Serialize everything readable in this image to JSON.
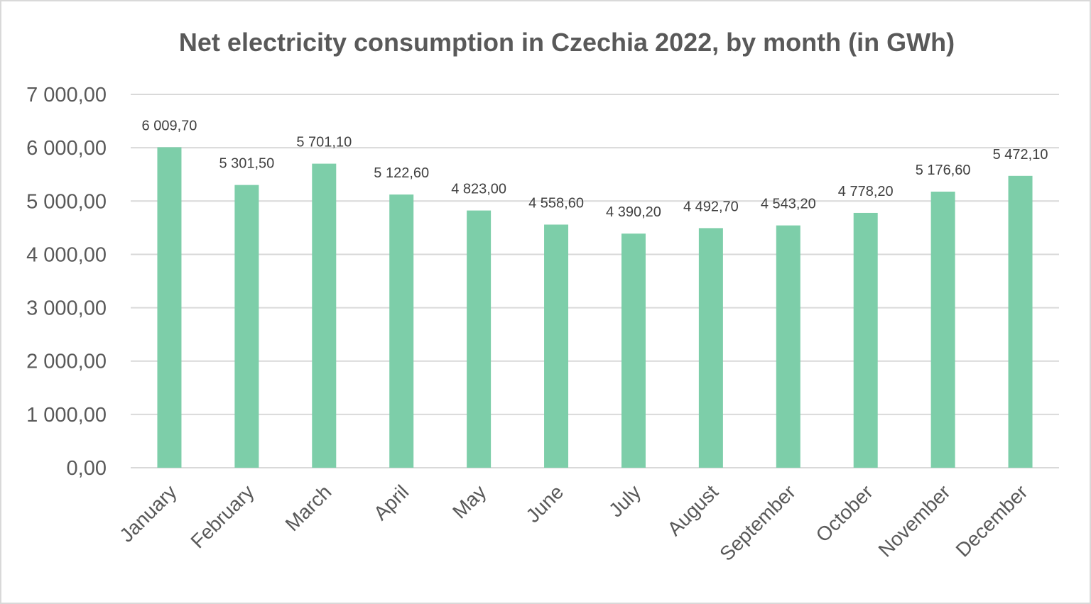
{
  "chart_data": {
    "type": "bar",
    "title": "Net electricity consumption in Czechia 2022, by month (in GWh)",
    "categories": [
      "January",
      "February",
      "March",
      "April",
      "May",
      "June",
      "July",
      "August",
      "September",
      "October",
      "November",
      "December"
    ],
    "values": [
      6009.7,
      5301.5,
      5701.1,
      5122.6,
      4823.0,
      4558.6,
      4390.2,
      4492.7,
      4543.2,
      4778.2,
      5176.6,
      5472.1
    ],
    "data_labels": [
      "6 009,70",
      "5 301,50",
      "5 701,10",
      "5 122,60",
      "4 823,00",
      "4 558,60",
      "4 390,20",
      "4 492,70",
      "4 543,20",
      "4 778,20",
      "5 176,60",
      "5 472,10"
    ],
    "ylim": [
      0,
      7000
    ],
    "yticks": [
      0,
      1000,
      2000,
      3000,
      4000,
      5000,
      6000,
      7000
    ],
    "ytick_labels": [
      "0,00",
      "1 000,00",
      "2 000,00",
      "3 000,00",
      "4 000,00",
      "5 000,00",
      "6 000,00",
      "7 000,00"
    ],
    "grid": true,
    "legend": "none",
    "colors": {
      "bar": "#7dcea9",
      "grid": "#d9d9d9",
      "text": "#595959"
    }
  }
}
